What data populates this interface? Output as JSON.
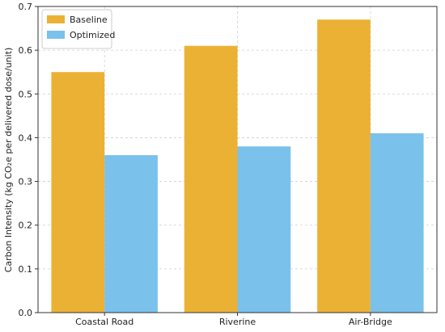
{
  "chart_data": {
    "type": "bar",
    "categories": [
      "Coastal Road",
      "Riverine",
      "Air-Bridge"
    ],
    "series": [
      {
        "name": "Baseline",
        "values": [
          0.55,
          0.61,
          0.67
        ],
        "color": "#ebb135"
      },
      {
        "name": "Optimized",
        "values": [
          0.36,
          0.38,
          0.41
        ],
        "color": "#7ac1eb"
      }
    ],
    "ylabel": "Carbon Intensity (kg CO₂e per delivered dose/unit)",
    "xlabel": "",
    "ylim": [
      0,
      0.7
    ],
    "yticks": [
      0.0,
      0.1,
      0.2,
      0.3,
      0.4,
      0.5,
      0.6,
      0.7
    ],
    "ytick_labels": [
      "0.0",
      "0.1",
      "0.2",
      "0.3",
      "0.4",
      "0.5",
      "0.6",
      "0.7"
    ],
    "grid": true,
    "legend_position": "top-left"
  }
}
